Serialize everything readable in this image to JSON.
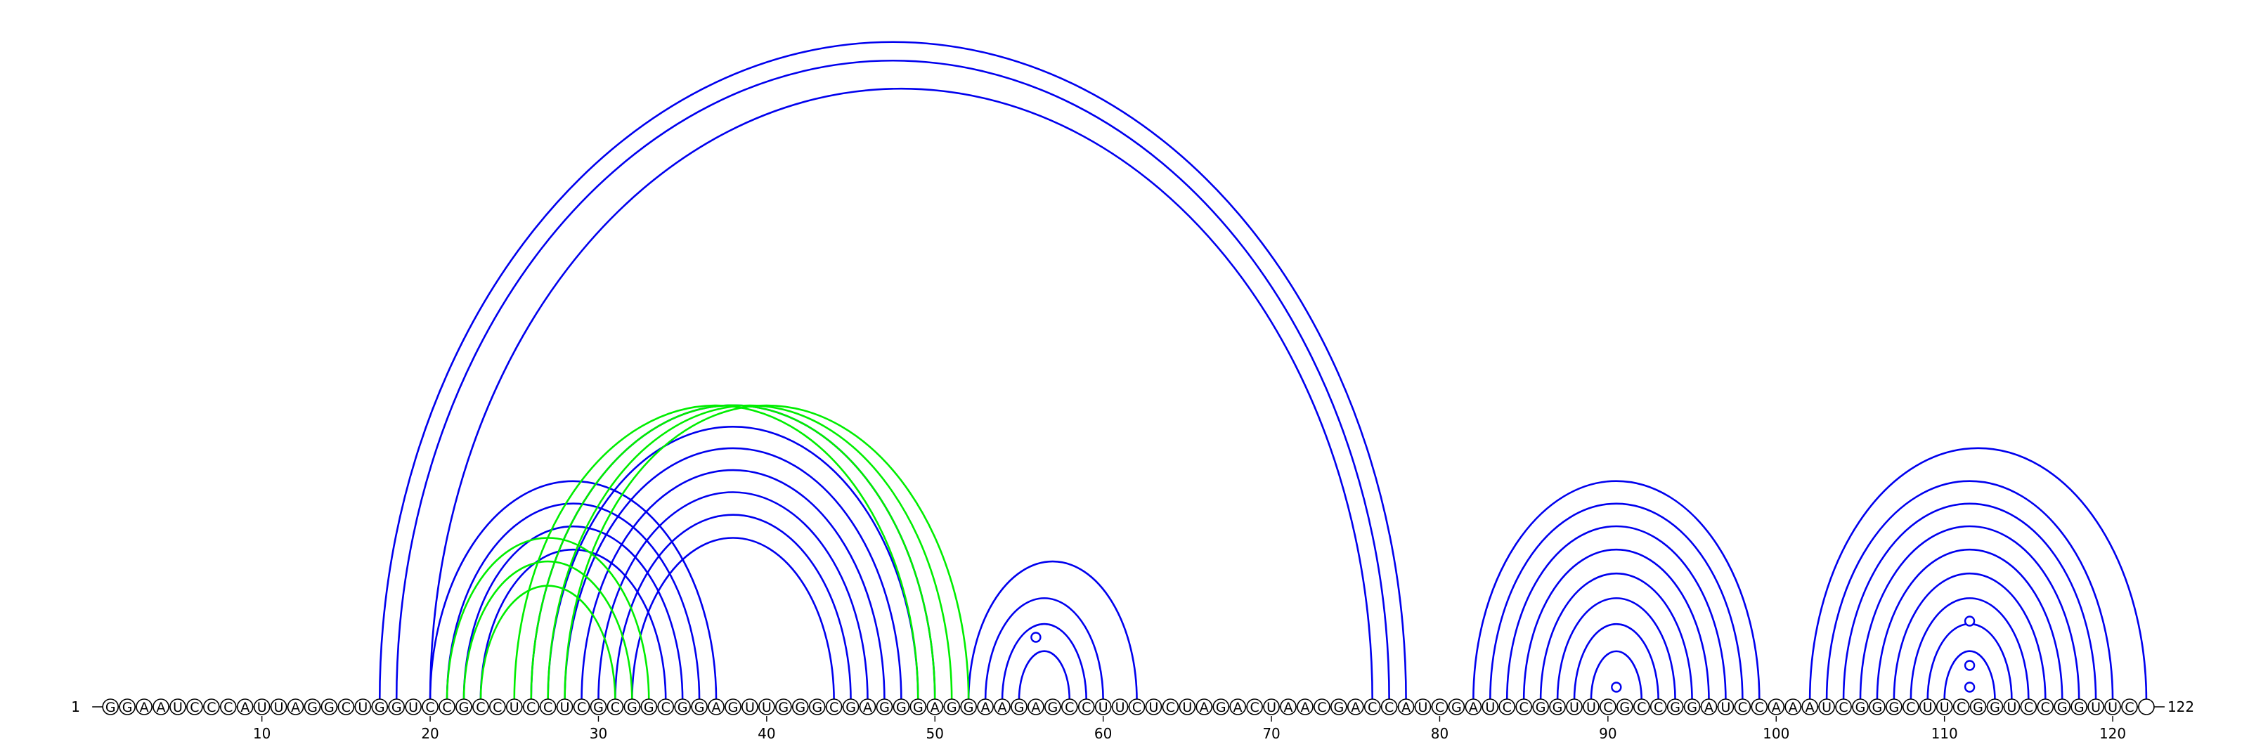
{
  "sequence": "GGAAUCCCAUUAGGCUGGUCCGCCUCCUCGCGGCGGAGUUGGGCGAGGGAGGAAGAGCCUUCUCUAGACUAACGACCAUCGAUCCGGUUCGCCGGAUCCAAAUCGGGCUUCGGUCCGGUUC",
  "start_label": "1",
  "end_label": "122",
  "tick_labels": [
    "10",
    "20",
    "30",
    "40",
    "50",
    "60",
    "70",
    "80",
    "90",
    "100",
    "110",
    "120"
  ],
  "colors": {
    "primary_arcs": "#0000ee",
    "alternate_arcs": "#00ee00",
    "ring_marker": "#0000ee"
  },
  "chart_data": {
    "type": "arc-diagram",
    "length": 122,
    "ticks": [
      10,
      20,
      30,
      40,
      50,
      60,
      70,
      80,
      90,
      100,
      110,
      120
    ],
    "blue_pairs": [
      [
        17,
        78
      ],
      [
        18,
        77
      ],
      [
        20,
        76
      ],
      [
        20,
        37
      ],
      [
        21,
        36
      ],
      [
        22,
        35
      ],
      [
        23,
        34
      ],
      [
        26,
        50
      ],
      [
        27,
        49
      ],
      [
        28,
        48
      ],
      [
        29,
        47
      ],
      [
        30,
        46
      ],
      [
        31,
        45
      ],
      [
        32,
        44
      ],
      [
        52,
        62
      ],
      [
        53,
        60
      ],
      [
        54,
        59
      ],
      [
        55,
        58
      ],
      [
        82,
        99
      ],
      [
        83,
        98
      ],
      [
        84,
        97
      ],
      [
        85,
        96
      ],
      [
        86,
        95
      ],
      [
        87,
        94
      ],
      [
        88,
        93
      ],
      [
        89,
        92
      ],
      [
        102,
        122
      ],
      [
        103,
        120
      ],
      [
        104,
        119
      ],
      [
        105,
        118
      ],
      [
        106,
        117
      ],
      [
        107,
        116
      ],
      [
        108,
        115
      ],
      [
        109,
        114
      ],
      [
        110,
        113
      ]
    ],
    "green_pairs": [
      [
        21,
        33
      ],
      [
        22,
        32
      ],
      [
        23,
        31
      ],
      [
        25,
        49
      ],
      [
        26,
        50
      ],
      [
        27,
        51
      ],
      [
        28,
        52
      ]
    ],
    "ring_markers": [
      56.0,
      90.5,
      111.5,
      111.5,
      111.5
    ]
  }
}
